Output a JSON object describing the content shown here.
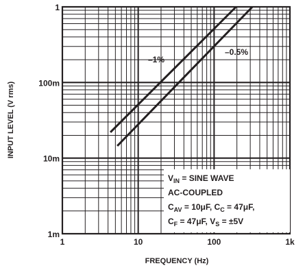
{
  "chart_data": {
    "type": "line",
    "x_scale": "log",
    "y_scale": "log",
    "xlim": [
      1,
      1000
    ],
    "ylim": [
      0.001,
      1
    ],
    "grid": true,
    "xlabel": "FREQUENCY (Hz)",
    "ylabel": "INPUT LEVEL (V rms)",
    "x_ticks": [
      {
        "value": 1,
        "label": "1"
      },
      {
        "value": 10,
        "label": "10"
      },
      {
        "value": 100,
        "label": "100"
      },
      {
        "value": 1000,
        "label": "1k"
      }
    ],
    "y_ticks": [
      {
        "value": 0.001,
        "label": "1m"
      },
      {
        "value": 0.01,
        "label": "10m"
      },
      {
        "value": 0.1,
        "label": "100m"
      },
      {
        "value": 1,
        "label": "1"
      }
    ],
    "series": [
      {
        "name": "–1%",
        "x": [
          4.3,
          195
        ],
        "y": [
          0.022,
          1.0
        ]
      },
      {
        "name": "–0.5%",
        "x": [
          5.3,
          320
        ],
        "y": [
          0.0145,
          1.0
        ]
      }
    ],
    "annotations": {
      "conditions": [
        {
          "base": "V",
          "sub": "IN",
          "rest": " = SINE WAVE"
        },
        {
          "base": "AC-COUPLED",
          "sub": "",
          "rest": ""
        },
        {
          "base": "C",
          "sub": "AV",
          "rest": " = 10μF, C",
          "sub2": "C",
          "rest2": " = 47μF,"
        },
        {
          "base": "C",
          "sub": "F",
          "rest": " = 47μF, V",
          "sub2": "S",
          "rest2": " = ±5V"
        }
      ]
    },
    "colors": {
      "line": "#231f20",
      "grid": "#231f20",
      "background": "#ffffff"
    }
  }
}
